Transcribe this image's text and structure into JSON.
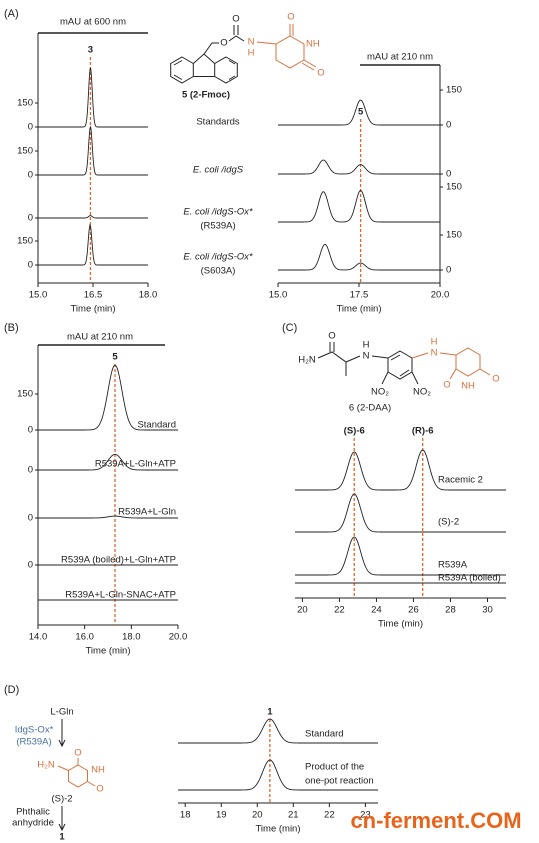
{
  "panel_labels": [
    "(A)",
    "(B)",
    "(C)",
    "(D)"
  ],
  "plots": [
    {
      "ylabel": "mAU  at 600 nm",
      "xlabel": "Time (min)",
      "xlim": [
        15,
        18
      ],
      "xticks": [
        {
          "value": 15,
          "label": "15.0"
        },
        {
          "value": 16.5,
          "label": "16.5"
        },
        {
          "value": 18,
          "label": "18.0"
        }
      ],
      "peak_labels": [
        {
          "text": "3",
          "x": 16.43
        }
      ],
      "traces": [
        {
          "label": [
            "Standards"
          ],
          "yticks": [
            0,
            150
          ],
          "peaks": [
            {
              "x": 16.43,
              "height": 370
            }
          ]
        },
        {
          "label": [
            "E. coli /idgS"
          ],
          "yticks": [
            0,
            150
          ],
          "peaks": [
            {
              "x": 16.43,
              "height": 300
            }
          ]
        },
        {
          "label": [
            "E. coli /idgS-Ox*",
            "(R539A)"
          ],
          "yticks": [
            0
          ],
          "peaks": [
            {
              "x": 16.43,
              "height": 15
            }
          ]
        },
        {
          "label": [
            "E. coli /idgS-Ox*",
            "(S603A)"
          ],
          "yticks": [
            0,
            150
          ],
          "peaks": [
            {
              "x": 16.42,
              "height": 250
            }
          ]
        }
      ]
    },
    {
      "ylabel": "mAU  at 210  nm",
      "xlabel": "Time (min)",
      "xlim": [
        15,
        20
      ],
      "xticks": [
        {
          "value": 15,
          "label": "15.0"
        },
        17.5,
        {
          "value": 20,
          "label": "20.0"
        }
      ],
      "peak_labels": [
        {
          "text": "5",
          "x": 17.55
        }
      ],
      "traces": [
        {
          "yticks": [
            0,
            150
          ],
          "peaks": [
            {
              "x": 17.55,
              "height": 107
            }
          ]
        },
        {
          "yticks": [
            0
          ],
          "peaks": [
            {
              "x": 16.4,
              "height": 60
            },
            {
              "x": 17.55,
              "height": 40
            }
          ]
        },
        {
          "yticks": [
            150
          ],
          "peaks": [
            {
              "x": 16.4,
              "height": 130
            },
            {
              "x": 17.55,
              "height": 135
            }
          ]
        },
        {
          "yticks": [
            0,
            150
          ],
          "peaks": [
            {
              "x": 16.45,
              "height": 110
            },
            {
              "x": 17.55,
              "height": 30
            }
          ]
        }
      ]
    },
    {
      "ylabel": "mAU  at 210  nm",
      "xlabel": "Time (min)",
      "xlim": [
        14,
        20
      ],
      "xticks": [
        {
          "value": 14,
          "label": "14.0"
        },
        {
          "value": 16,
          "label": "16.0"
        },
        {
          "value": 18,
          "label": "18.0"
        },
        {
          "value": 20,
          "label": "20.0"
        }
      ],
      "peak_labels": [
        {
          "text": "5",
          "x": 17.3
        }
      ],
      "traces": [
        {
          "label": [
            "Standard"
          ],
          "yticks": [
            0,
            150
          ],
          "peaks": [
            {
              "x": 17.3,
              "height": 270
            }
          ]
        },
        {
          "label": [
            "R539A+L-Gln+ATP"
          ],
          "yticks": [
            0
          ],
          "peaks": [
            {
              "x": 17.3,
              "height": 65
            }
          ]
        },
        {
          "label": [
            "R539A+L-Gln"
          ],
          "yticks": [
            0
          ],
          "peaks": [
            {
              "x": 17.3,
              "height": 8
            }
          ]
        },
        {
          "label": [
            "R539A (boiled)+L-Gln+ATP"
          ],
          "yticks": [
            0
          ],
          "peaks": []
        },
        {
          "label": [
            "R539A+L-Gln-SNAC+ATP"
          ],
          "yticks": [],
          "peaks": []
        }
      ]
    },
    {
      "xlabel": "Time (min)",
      "xlim": [
        19.6,
        31
      ],
      "xticks": [
        20,
        22,
        24,
        26,
        28,
        30
      ],
      "peak_labels": [
        {
          "text": "(S)-6",
          "x": 22.8
        },
        {
          "text": "(R)-6",
          "x": 26.5
        }
      ],
      "traces": [
        {
          "label": [
            "Racemic 2"
          ],
          "yticks": [],
          "peaks": [
            {
              "x": 22.8,
              "height": 38
            },
            {
              "x": 26.5,
              "height": 40
            }
          ]
        },
        {
          "label": [
            "(S)-2"
          ],
          "yticks": [],
          "peaks": [
            {
              "x": 22.8,
              "height": 38
            }
          ]
        },
        {
          "label": [
            "R539A"
          ],
          "yticks": [],
          "peaks": [
            {
              "x": 22.8,
              "height": 38
            }
          ]
        },
        {
          "label": [
            "R539A (boiled)"
          ],
          "yticks": [],
          "peaks": []
        }
      ]
    },
    {
      "xlabel": "Time (min)",
      "xlim": [
        17.8,
        23.35
      ],
      "xticks": [
        18,
        19,
        20,
        21,
        22,
        23
      ],
      "peak_labels": [
        {
          "text": "1",
          "x": 20.35
        }
      ],
      "traces": [
        {
          "label": [
            "Standard"
          ],
          "yticks": [],
          "peaks": [
            {
              "x": 20.35,
              "height": 24
            }
          ]
        },
        {
          "label": [
            "Product of the",
            "one-pot  reaction"
          ],
          "yticks": [],
          "peaks": [
            {
              "x": 20.35,
              "height": 30
            }
          ]
        }
      ]
    }
  ],
  "structures": [
    {
      "caption": "5 (2-Fmoc)",
      "atoms": [
        "O",
        "O",
        "N",
        "H",
        "O",
        "NH",
        "O"
      ]
    },
    {
      "caption": "6 (2-DAA)",
      "atoms": [
        "H₂N",
        "O",
        "N",
        "H",
        "NO₂",
        "NO₂",
        "N",
        "H",
        "O",
        "NH",
        "O"
      ]
    },
    {
      "atoms": [
        "H₂N",
        "O",
        "NH",
        "O"
      ]
    }
  ],
  "scheme": {
    "start": "L-Gln",
    "enzyme": [
      "IdgS-Ox*",
      "(R539A)"
    ],
    "intermediate": "(S)-2",
    "reagent": [
      "Phthalic",
      "anhydride"
    ],
    "product": "1"
  },
  "watermark": "cn-ferment.COM"
}
